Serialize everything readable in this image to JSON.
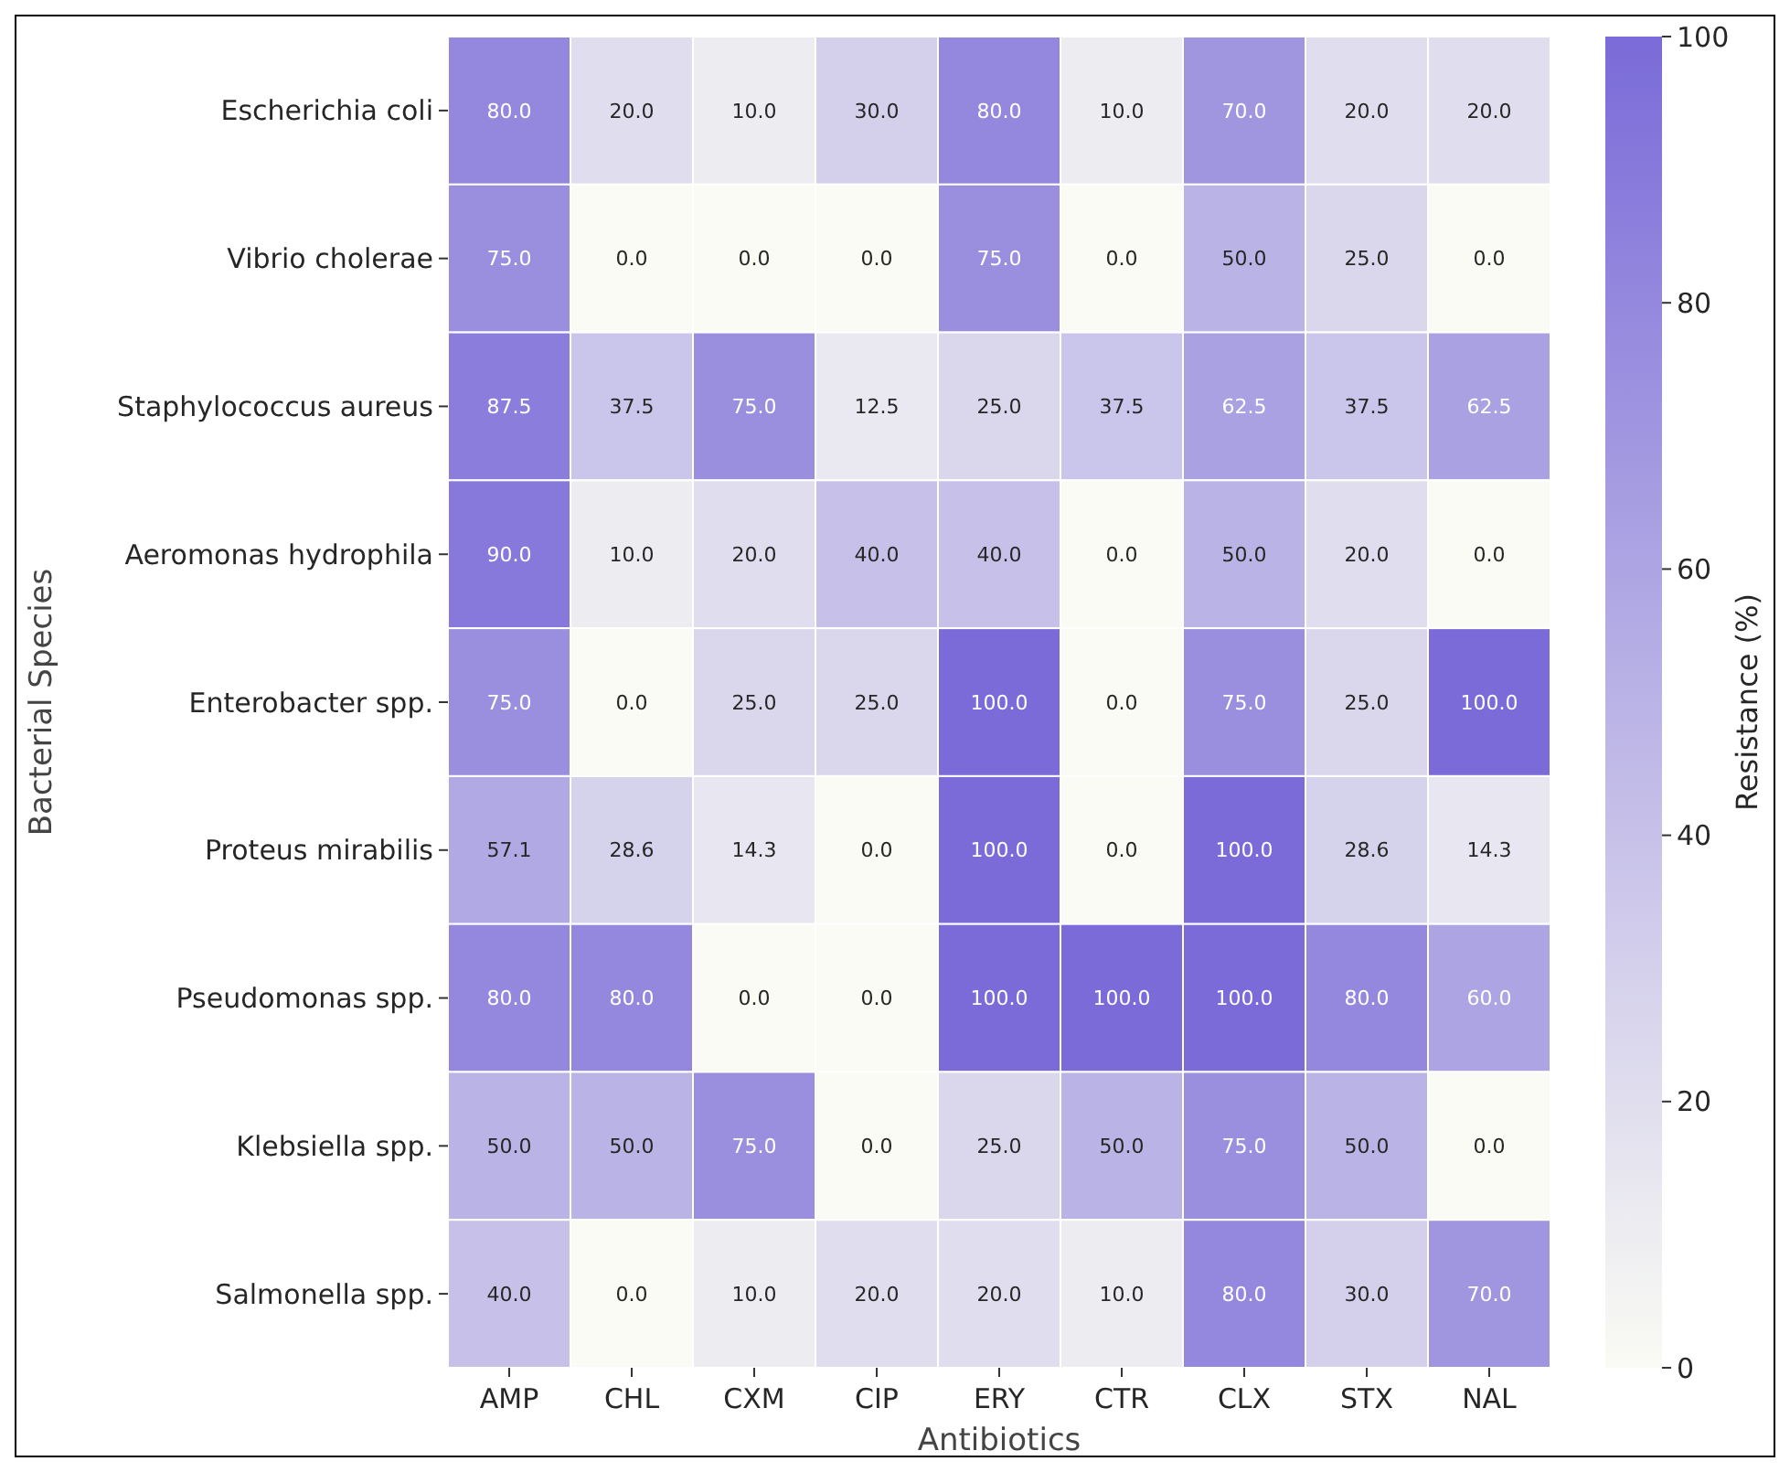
{
  "chart_data": {
    "type": "heatmap",
    "xlabel": "Antibiotics",
    "ylabel": "Bacterial Species",
    "clabel": "Resistance (%)",
    "categories": [
      "AMP",
      "CHL",
      "CXM",
      "CIP",
      "ERY",
      "CTR",
      "CLX",
      "STX",
      "NAL"
    ],
    "y_categories": [
      "Escherichia coli",
      "Vibrio cholerae",
      "Staphylococcus aureus",
      "Aeromonas hydrophila",
      "Enterobacter spp.",
      "Proteus mirabilis",
      "Pseudomonas spp.",
      "Klebsiella spp.",
      "Salmonella spp."
    ],
    "cells": [
      [
        80,
        20,
        10,
        30,
        80,
        10,
        70,
        20,
        20
      ],
      [
        75,
        0,
        0,
        0,
        75,
        0,
        50,
        25,
        0
      ],
      [
        87.5,
        37.5,
        75,
        12.5,
        25,
        37.5,
        62.5,
        37.5,
        62.5
      ],
      [
        90,
        10,
        20,
        40,
        40,
        0,
        50,
        20,
        0
      ],
      [
        75,
        0,
        25,
        25,
        100,
        0,
        75,
        25,
        100
      ],
      [
        57.1,
        28.6,
        14.3,
        0,
        100,
        0,
        100,
        28.6,
        14.3
      ],
      [
        80,
        80,
        0,
        0,
        100,
        100,
        100,
        80,
        60
      ],
      [
        50,
        50,
        75,
        0,
        25,
        50,
        75,
        50,
        0
      ],
      [
        40,
        0,
        10,
        20,
        20,
        10,
        80,
        30,
        70
      ]
    ],
    "cell_labels": [
      [
        "80.0",
        "20.0",
        "10.0",
        "30.0",
        "80.0",
        "10.0",
        "70.0",
        "20.0",
        "20.0"
      ],
      [
        "75.0",
        "0.0",
        "0.0",
        "0.0",
        "75.0",
        "0.0",
        "50.0",
        "25.0",
        "0.0"
      ],
      [
        "87.5",
        "37.5",
        "75.0",
        "12.5",
        "25.0",
        "37.5",
        "62.5",
        "37.5",
        "62.5"
      ],
      [
        "90.0",
        "10.0",
        "20.0",
        "40.0",
        "40.0",
        "0.0",
        "50.0",
        "20.0",
        "0.0"
      ],
      [
        "75.0",
        "0.0",
        "25.0",
        "25.0",
        "100.0",
        "0.0",
        "75.0",
        "25.0",
        "100.0"
      ],
      [
        "57.1",
        "28.6",
        "14.3",
        "0.0",
        "100.0",
        "0.0",
        "100.0",
        "28.6",
        "14.3"
      ],
      [
        "80.0",
        "80.0",
        "0.0",
        "0.0",
        "100.0",
        "100.0",
        "100.0",
        "80.0",
        "60.0"
      ],
      [
        "50.0",
        "50.0",
        "75.0",
        "0.0",
        "25.0",
        "50.0",
        "75.0",
        "50.0",
        "0.0"
      ],
      [
        "40.0",
        "0.0",
        "10.0",
        "20.0",
        "20.0",
        "10.0",
        "80.0",
        "30.0",
        "70.0"
      ]
    ],
    "clim": [
      0,
      100
    ],
    "cticks": [
      0,
      20,
      40,
      60,
      80,
      100
    ],
    "data_labels": true
  }
}
